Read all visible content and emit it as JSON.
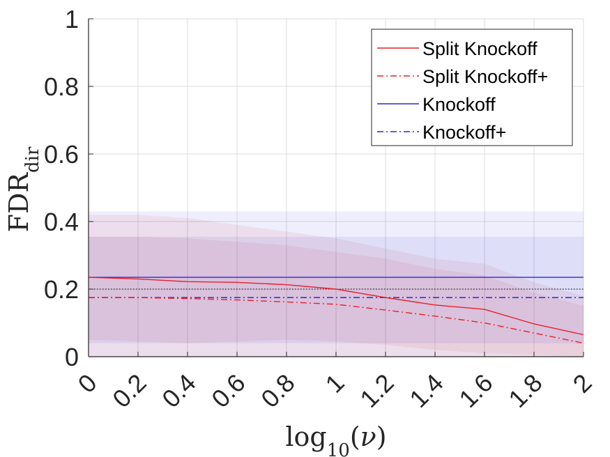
{
  "chart_data": {
    "type": "line",
    "xlabel": "log10(ν)",
    "ylabel": "FDR_dir",
    "xlim": [
      0,
      2
    ],
    "ylim": [
      0,
      1
    ],
    "x_ticks": [
      "0",
      "0.2",
      "0.4",
      "0.6",
      "0.8",
      "1",
      "1.2",
      "1.4",
      "1.6",
      "1.8",
      "2"
    ],
    "y_ticks": [
      "0",
      "0.2",
      "0.4",
      "0.6",
      "0.8",
      "1"
    ],
    "grid": true,
    "legend_position": "top-right",
    "x": [
      0,
      0.2,
      0.4,
      0.6,
      0.8,
      1.0,
      1.2,
      1.4,
      1.6,
      1.8,
      2.0
    ],
    "reference_line": 0.2,
    "series": [
      {
        "name": "Split Knockoff",
        "color": "#e8202a",
        "style": "solid",
        "values": [
          0.235,
          0.23,
          0.222,
          0.22,
          0.213,
          0.2,
          0.175,
          0.153,
          0.14,
          0.097,
          0.065
        ],
        "band_upper": [
          0.42,
          0.42,
          0.41,
          0.39,
          0.37,
          0.35,
          0.32,
          0.29,
          0.275,
          0.22,
          0.18
        ],
        "band_lower": [
          0.05,
          0.045,
          0.04,
          0.045,
          0.05,
          0.045,
          0.035,
          0.02,
          0.01,
          0.005,
          0.0
        ]
      },
      {
        "name": "Split Knockoff+",
        "color": "#e8202a",
        "style": "dashdot",
        "values": [
          0.175,
          0.175,
          0.172,
          0.168,
          0.162,
          0.155,
          0.138,
          0.12,
          0.1,
          0.07,
          0.04
        ],
        "band_upper": [
          0.355,
          0.355,
          0.35,
          0.34,
          0.33,
          0.31,
          0.29,
          0.26,
          0.24,
          0.19,
          0.15
        ],
        "band_lower": [
          0.0,
          0.0,
          0.0,
          0.0,
          0.0,
          0.0,
          0.0,
          0.0,
          0.0,
          0.0,
          0.0
        ]
      },
      {
        "name": "Knockoff",
        "color": "#2a2ad4",
        "style": "solid",
        "values": [
          0.235,
          0.235,
          0.235,
          0.235,
          0.235,
          0.235,
          0.235,
          0.235,
          0.235,
          0.235,
          0.235
        ],
        "band_upper": [
          0.43,
          0.43,
          0.43,
          0.43,
          0.43,
          0.43,
          0.43,
          0.43,
          0.43,
          0.43,
          0.43
        ],
        "band_lower": [
          0.04,
          0.04,
          0.04,
          0.04,
          0.04,
          0.04,
          0.04,
          0.04,
          0.04,
          0.04,
          0.04
        ]
      },
      {
        "name": "Knockoff+",
        "color": "#2a2ad4",
        "style": "dashdot",
        "values": [
          0.175,
          0.175,
          0.175,
          0.175,
          0.175,
          0.175,
          0.175,
          0.175,
          0.175,
          0.175,
          0.175
        ],
        "band_upper": [
          0.355,
          0.355,
          0.355,
          0.355,
          0.355,
          0.355,
          0.355,
          0.355,
          0.355,
          0.355,
          0.355
        ],
        "band_lower": [
          0.0,
          0.0,
          0.0,
          0.0,
          0.0,
          0.0,
          0.0,
          0.0,
          0.0,
          0.0,
          0.0
        ]
      }
    ]
  }
}
